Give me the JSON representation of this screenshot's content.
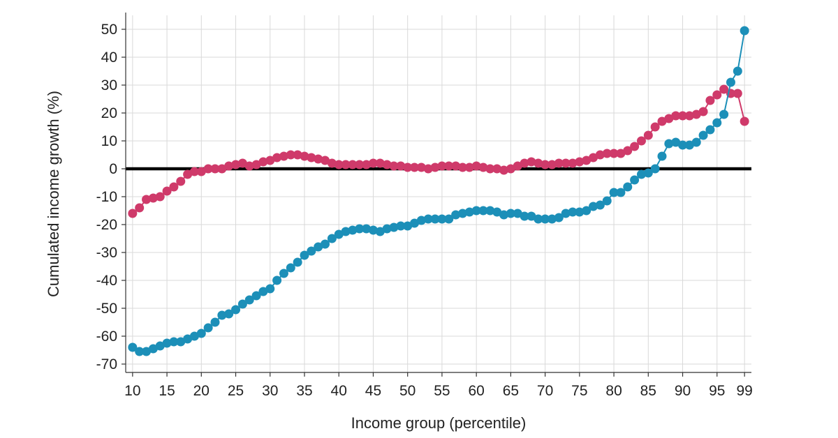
{
  "chart_data": {
    "type": "line",
    "xlabel": "Income group (percentile)",
    "ylabel": "Cumulated income growth (%)",
    "xlim": [
      9,
      100
    ],
    "ylim": [
      -73,
      55
    ],
    "xticks": [
      10,
      15,
      20,
      25,
      30,
      35,
      40,
      45,
      50,
      55,
      60,
      65,
      70,
      75,
      80,
      85,
      90,
      95,
      99
    ],
    "yticks": [
      50,
      40,
      30,
      20,
      10,
      0,
      -10,
      -20,
      -30,
      -40,
      -50,
      -60,
      -70
    ],
    "grid": true,
    "reference_line_y": 0,
    "x": [
      10,
      11,
      12,
      13,
      14,
      15,
      16,
      17,
      18,
      19,
      20,
      21,
      22,
      23,
      24,
      25,
      26,
      27,
      28,
      29,
      30,
      31,
      32,
      33,
      34,
      35,
      36,
      37,
      38,
      39,
      40,
      41,
      42,
      43,
      44,
      45,
      46,
      47,
      48,
      49,
      50,
      51,
      52,
      53,
      54,
      55,
      56,
      57,
      58,
      59,
      60,
      61,
      62,
      63,
      64,
      65,
      66,
      67,
      68,
      69,
      70,
      71,
      72,
      73,
      74,
      75,
      76,
      77,
      78,
      79,
      80,
      81,
      82,
      83,
      84,
      85,
      86,
      87,
      88,
      89,
      90,
      91,
      92,
      93,
      94,
      95,
      96,
      97,
      98,
      99
    ],
    "series": [
      {
        "color": "#cf3a6a",
        "values": [
          -16,
          -14,
          -11,
          -10.5,
          -10,
          -8,
          -6.5,
          -4.5,
          -2,
          -1,
          -1,
          0,
          0,
          0,
          1,
          1.5,
          2,
          1,
          1.5,
          2.5,
          3,
          4,
          4.5,
          5,
          5,
          4.5,
          4,
          3.5,
          3,
          2,
          1.5,
          1.5,
          1.5,
          1.5,
          1.5,
          2,
          2,
          1.5,
          1,
          1,
          0.5,
          0.5,
          0.5,
          0,
          0.5,
          1,
          1,
          1,
          0.5,
          0.5,
          1,
          0.5,
          0,
          0,
          -0.5,
          0,
          1,
          2,
          2.5,
          2,
          1.5,
          1.5,
          2,
          2,
          2,
          2.5,
          3,
          4,
          5,
          5.5,
          5.5,
          5.5,
          6.5,
          8,
          10,
          12,
          15,
          17,
          18,
          19,
          19,
          19,
          19.5,
          20.5,
          24.5,
          26.5,
          28.5,
          27,
          27,
          17
        ]
      },
      {
        "color": "#1c8fb8",
        "values": [
          -64,
          -65.5,
          -65.5,
          -64.5,
          -63.5,
          -62.5,
          -62,
          -62,
          -61,
          -60,
          -59,
          -57,
          -55,
          -52.5,
          -52,
          -50.5,
          -48.5,
          -47,
          -45.5,
          -44,
          -43,
          -40,
          -37.5,
          -35.5,
          -33.5,
          -31,
          -29.5,
          -28,
          -27,
          -25,
          -23.5,
          -22.5,
          -22,
          -21.5,
          -21.5,
          -22,
          -22.5,
          -21.5,
          -21,
          -20.5,
          -20.5,
          -19.5,
          -18.5,
          -18,
          -18,
          -18,
          -18,
          -16.5,
          -16,
          -15.5,
          -15,
          -15,
          -15,
          -15.5,
          -16.5,
          -16,
          -16,
          -17,
          -17,
          -18,
          -18,
          -18,
          -17.5,
          -16,
          -15.5,
          -15.5,
          -15,
          -13.5,
          -13,
          -11.5,
          -8.5,
          -8.5,
          -6.5,
          -4,
          -2,
          -1.5,
          0,
          4.5,
          9,
          9.5,
          8.5,
          8.5,
          9.5,
          12,
          14,
          16.5,
          19.5,
          31,
          35,
          49.5
        ]
      }
    ]
  }
}
